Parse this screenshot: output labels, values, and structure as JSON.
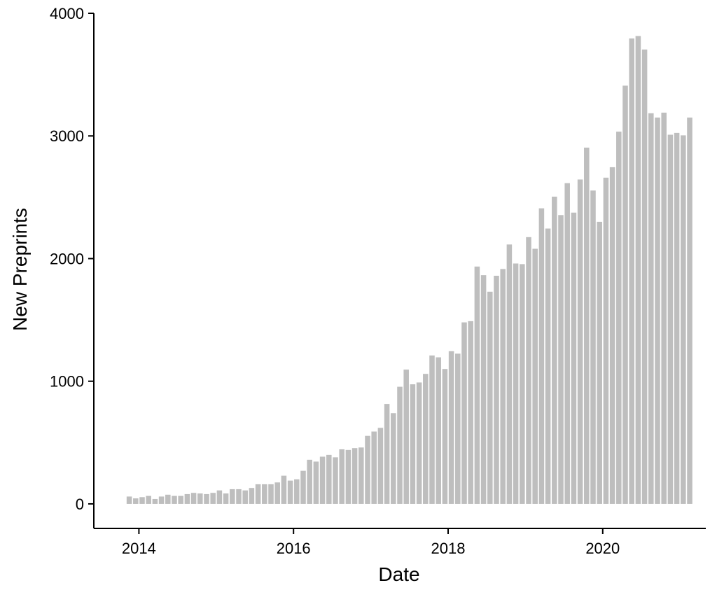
{
  "chart_data": {
    "type": "bar",
    "title": "",
    "xlabel": "Date",
    "ylabel": "New Preprints",
    "bar_color": "#bebebe",
    "grid": false,
    "legend": "none",
    "ylim": [
      -200,
      4000
    ],
    "xlim": [
      "2013-06",
      "2021-05"
    ],
    "y_ticks": [
      0,
      1000,
      2000,
      3000,
      4000
    ],
    "y_tick_labels": [
      "0",
      "1000",
      "2000",
      "3000",
      "4000"
    ],
    "x_ticks": [
      "2014-01",
      "2016-01",
      "2018-01",
      "2020-01"
    ],
    "x_tick_labels": [
      "2014",
      "2016",
      "2018",
      "2020"
    ],
    "categories": [
      "2013-11",
      "2013-12",
      "2014-01",
      "2014-02",
      "2014-03",
      "2014-04",
      "2014-05",
      "2014-06",
      "2014-07",
      "2014-08",
      "2014-09",
      "2014-10",
      "2014-11",
      "2014-12",
      "2015-01",
      "2015-02",
      "2015-03",
      "2015-04",
      "2015-05",
      "2015-06",
      "2015-07",
      "2015-08",
      "2015-09",
      "2015-10",
      "2015-11",
      "2015-12",
      "2016-01",
      "2016-02",
      "2016-03",
      "2016-04",
      "2016-05",
      "2016-06",
      "2016-07",
      "2016-08",
      "2016-09",
      "2016-10",
      "2016-11",
      "2016-12",
      "2017-01",
      "2017-02",
      "2017-03",
      "2017-04",
      "2017-05",
      "2017-06",
      "2017-07",
      "2017-08",
      "2017-09",
      "2017-10",
      "2017-11",
      "2017-12",
      "2018-01",
      "2018-02",
      "2018-03",
      "2018-04",
      "2018-05",
      "2018-06",
      "2018-07",
      "2018-08",
      "2018-09",
      "2018-10",
      "2018-11",
      "2018-12",
      "2019-01",
      "2019-02",
      "2019-03",
      "2019-04",
      "2019-05",
      "2019-06",
      "2019-07",
      "2019-08",
      "2019-09",
      "2019-10",
      "2019-11",
      "2019-12",
      "2020-01",
      "2020-02",
      "2020-03",
      "2020-04",
      "2020-05",
      "2020-06",
      "2020-07",
      "2020-08",
      "2020-09",
      "2020-10",
      "2020-11",
      "2020-12",
      "2021-01",
      "2021-02"
    ],
    "values": [
      60,
      45,
      55,
      65,
      40,
      60,
      75,
      65,
      65,
      80,
      90,
      85,
      80,
      90,
      110,
      85,
      120,
      120,
      110,
      130,
      160,
      160,
      160,
      175,
      230,
      190,
      200,
      270,
      360,
      345,
      385,
      400,
      380,
      445,
      440,
      455,
      460,
      555,
      590,
      620,
      815,
      740,
      955,
      1095,
      975,
      990,
      1060,
      1210,
      1195,
      1100,
      1245,
      1225,
      1480,
      1490,
      1935,
      1865,
      1730,
      1860,
      1915,
      2115,
      1960,
      1955,
      2175,
      2080,
      2410,
      2245,
      2505,
      2355,
      2615,
      2375,
      2645,
      2905,
      2555,
      2300,
      2660,
      2745,
      3035,
      3410,
      3795,
      3815,
      3705,
      3185,
      3150,
      3190,
      3010,
      3025,
      3005,
      3150
    ]
  }
}
